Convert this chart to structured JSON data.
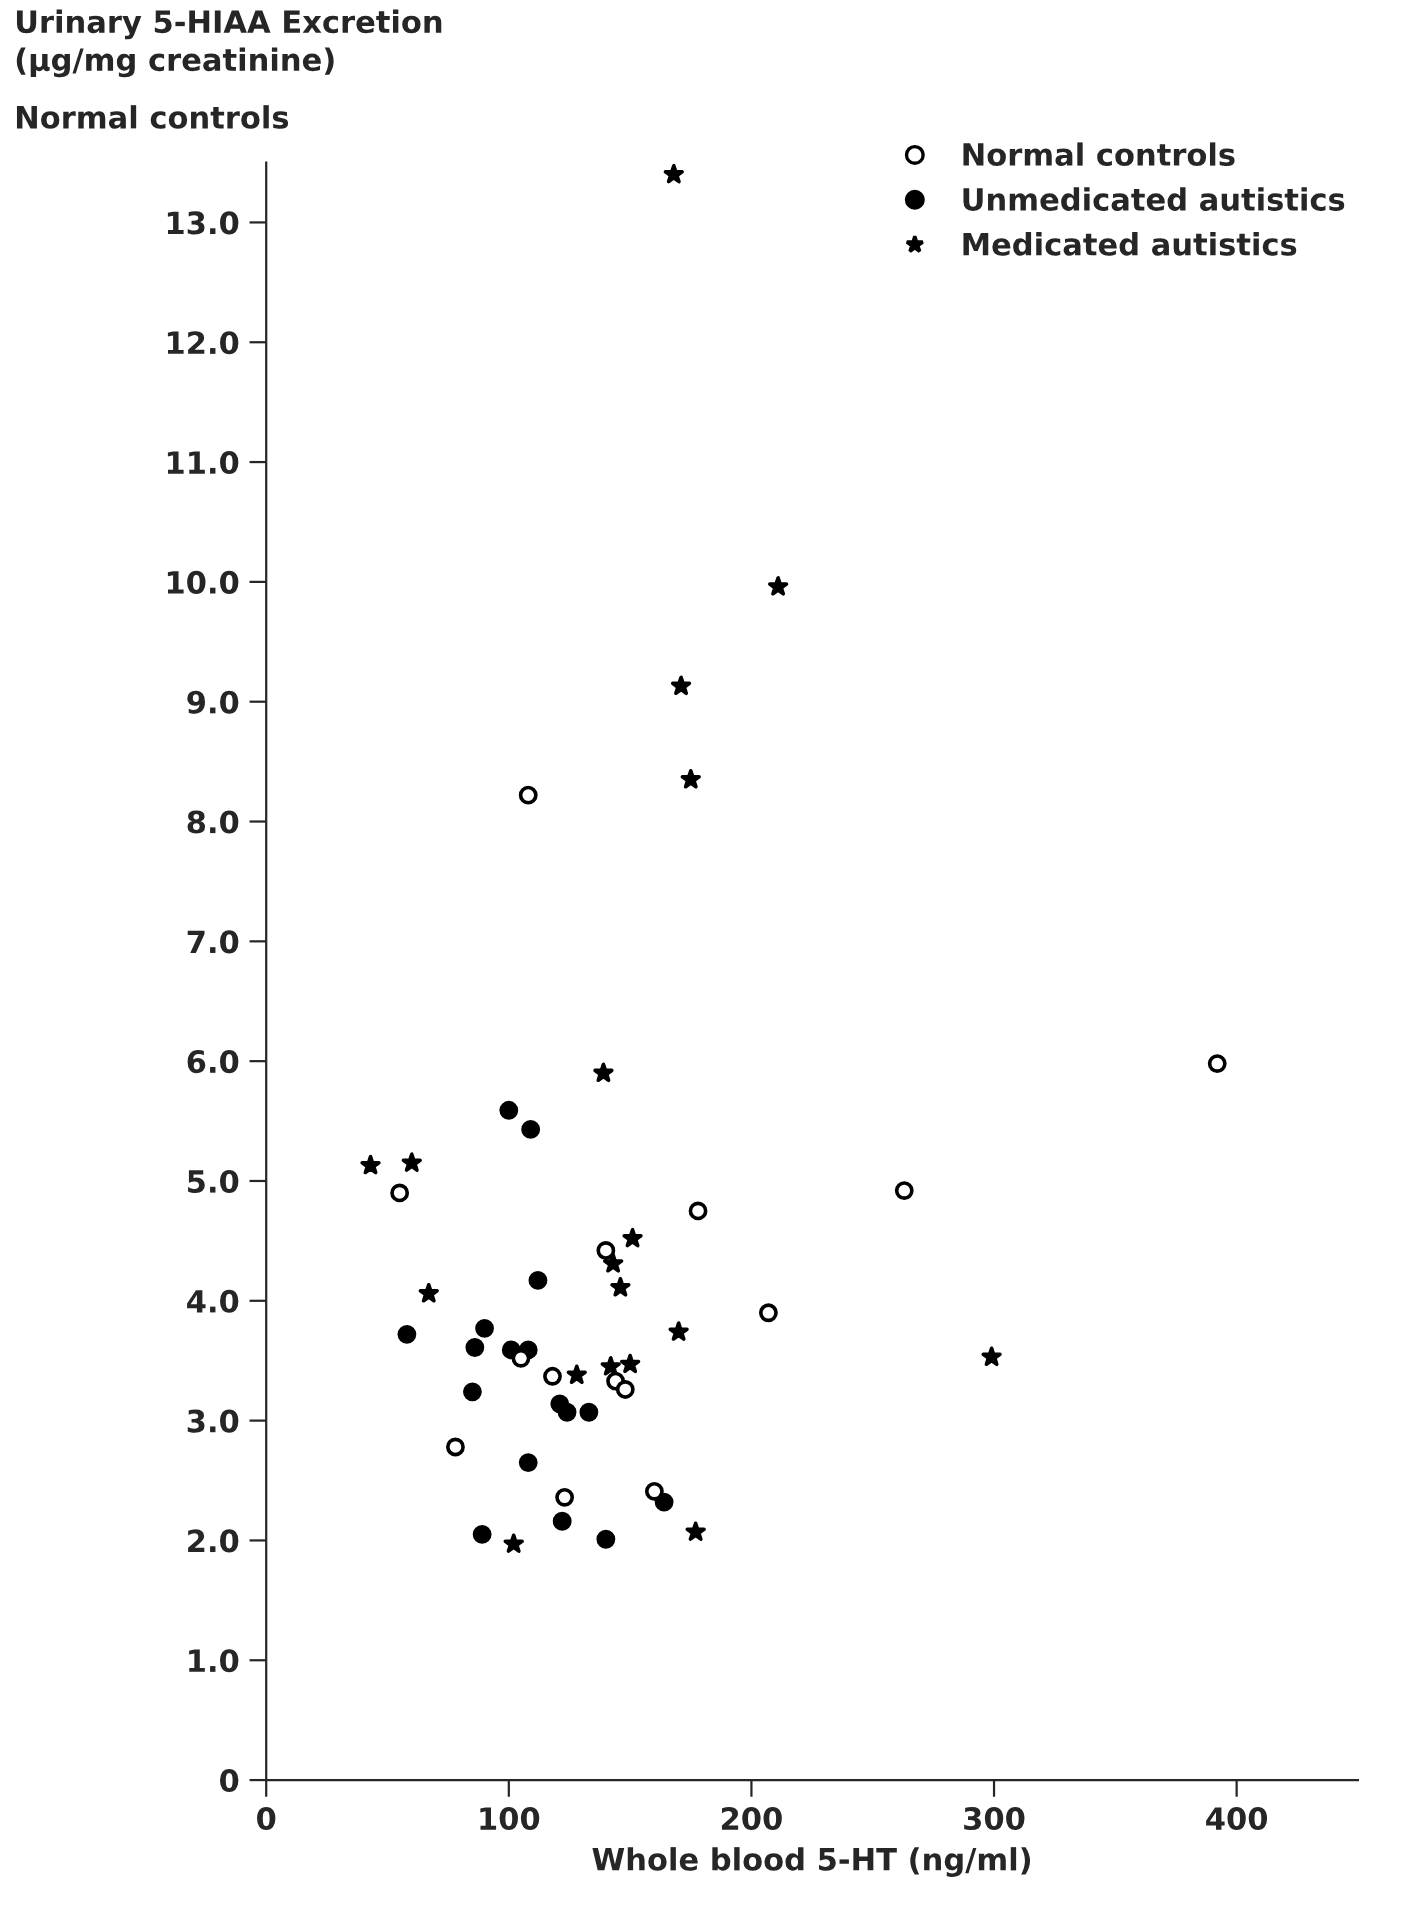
{
  "chart_data": {
    "type": "scatter",
    "ylabel": "Urinary 5-HIAA Excretion\n(µg/mg creatinine)",
    "xlabel": "Whole blood 5-HT (ng/ml)",
    "annotations": [
      "Normal controls"
    ],
    "xlim": [
      0,
      450
    ],
    "xticks": [
      0,
      100,
      200,
      300,
      400
    ],
    "ylim": [
      0,
      13.5
    ],
    "yticks": [
      0,
      {
        "value": 1,
        "label": "1.0"
      },
      {
        "value": 2,
        "label": "2.0"
      },
      {
        "value": 3,
        "label": "3.0"
      },
      {
        "value": 4,
        "label": "4.0"
      },
      {
        "value": 5,
        "label": "5.0"
      },
      {
        "value": 6,
        "label": "6.0"
      },
      {
        "value": 7,
        "label": "7.0"
      },
      {
        "value": 8,
        "label": "8.0"
      },
      {
        "value": 9,
        "label": "9.0"
      },
      {
        "value": 10,
        "label": "10.0"
      },
      {
        "value": 11,
        "label": "11.0"
      },
      {
        "value": 12,
        "label": "12.0"
      },
      {
        "value": 13,
        "label": "13.0"
      }
    ],
    "grid": false,
    "legend": "top right",
    "series": [
      {
        "name": "Normal controls",
        "color": "#ffffff",
        "marker": "circle",
        "x": [
          55,
          140,
          178,
          105,
          118,
          144,
          148,
          78,
          123,
          160,
          108,
          392,
          263,
          207
        ],
        "values": [
          4.9,
          4.42,
          4.75,
          3.52,
          3.37,
          3.33,
          3.26,
          2.78,
          2.36,
          2.41,
          8.22,
          5.98,
          4.92,
          3.9
        ]
      },
      {
        "name": "Unmedicated autistics",
        "color": "#000000",
        "marker": "circle",
        "x": [
          100,
          109,
          112,
          58,
          90,
          86,
          101,
          108,
          85,
          121,
          124,
          133,
          108,
          164,
          122,
          89,
          140
        ],
        "values": [
          5.59,
          5.43,
          4.17,
          3.72,
          3.77,
          3.61,
          3.59,
          3.59,
          3.24,
          3.14,
          3.07,
          3.07,
          2.65,
          2.32,
          2.16,
          2.05,
          2.01
        ]
      },
      {
        "name": "Medicated autistics",
        "color": "#000000",
        "marker": "star",
        "x": [
          139,
          43,
          60,
          151,
          143,
          67,
          146,
          170,
          128,
          142,
          150,
          102,
          177,
          168,
          211,
          171,
          175,
          299
        ],
        "values": [
          5.9,
          5.13,
          5.15,
          4.52,
          4.31,
          4.06,
          4.11,
          3.74,
          3.38,
          3.45,
          3.47,
          1.97,
          2.07,
          13.4,
          9.96,
          9.13,
          8.35,
          3.53
        ]
      }
    ]
  }
}
